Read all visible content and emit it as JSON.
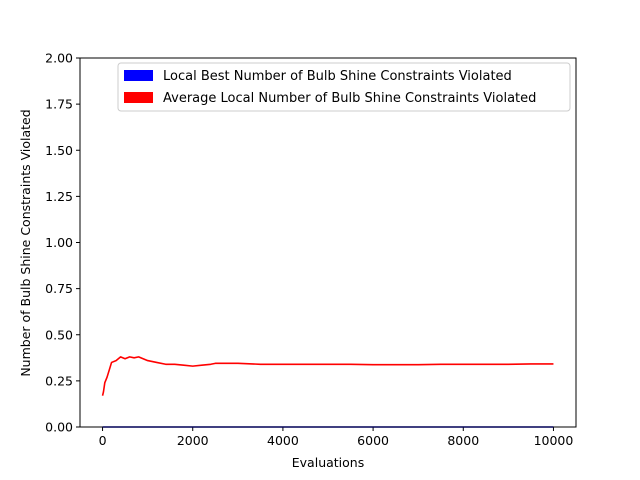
{
  "chart_data": {
    "type": "line",
    "title": "",
    "xlabel": "Evaluations",
    "ylabel": "Number of Bulb Shine Constraints Violated",
    "xlim": [
      -500,
      10500
    ],
    "ylim": [
      0,
      2.0
    ],
    "x_ticks": [
      0,
      2000,
      4000,
      6000,
      8000,
      10000
    ],
    "x_tick_labels": [
      "0",
      "2000",
      "4000",
      "6000",
      "8000",
      "10000"
    ],
    "y_ticks": [
      0,
      0.25,
      0.5,
      0.75,
      1.0,
      1.25,
      1.5,
      1.75,
      2.0
    ],
    "y_tick_labels": [
      "0.00",
      "0.25",
      "0.50",
      "0.75",
      "1.00",
      "1.25",
      "1.50",
      "1.75",
      "2.00"
    ],
    "grid": false,
    "legend_position": "top-right",
    "series": [
      {
        "name": "Local Best Number of Bulb Shine Constraints Violated",
        "color": "#0000ff",
        "x": [
          0,
          10000
        ],
        "y": [
          0,
          0
        ]
      },
      {
        "name": "Average Local Number of Bulb Shine Constraints Violated",
        "color": "#ff0000",
        "x": [
          0,
          20,
          50,
          100,
          150,
          200,
          300,
          400,
          500,
          600,
          700,
          800,
          900,
          1000,
          1200,
          1400,
          1600,
          1800,
          2000,
          2200,
          2400,
          2500,
          2700,
          3000,
          3500,
          4000,
          4500,
          5000,
          5500,
          6000,
          6500,
          7000,
          7500,
          8000,
          8500,
          9000,
          9500,
          10000
        ],
        "y": [
          0.17,
          0.19,
          0.24,
          0.27,
          0.31,
          0.35,
          0.36,
          0.38,
          0.37,
          0.38,
          0.375,
          0.38,
          0.37,
          0.36,
          0.35,
          0.34,
          0.34,
          0.335,
          0.33,
          0.335,
          0.34,
          0.345,
          0.345,
          0.345,
          0.34,
          0.34,
          0.34,
          0.34,
          0.34,
          0.338,
          0.338,
          0.338,
          0.34,
          0.34,
          0.34,
          0.34,
          0.342,
          0.342
        ]
      }
    ]
  }
}
